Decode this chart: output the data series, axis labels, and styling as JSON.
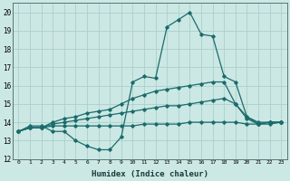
{
  "xlabel": "Humidex (Indice chaleur)",
  "xlim": [
    -0.5,
    23.5
  ],
  "ylim": [
    12,
    20.5
  ],
  "yticks": [
    12,
    13,
    14,
    15,
    16,
    17,
    18,
    19,
    20
  ],
  "xticks": [
    0,
    1,
    2,
    3,
    4,
    5,
    6,
    7,
    8,
    9,
    10,
    11,
    12,
    13,
    14,
    15,
    16,
    17,
    18,
    19,
    20,
    21,
    22,
    23
  ],
  "bg_color": "#cce8e4",
  "grid_color": "#aacfcc",
  "line_color": "#1a6b6b",
  "series": [
    [
      13.5,
      13.8,
      13.8,
      13.5,
      13.5,
      13.0,
      12.7,
      12.5,
      12.5,
      13.2,
      16.2,
      16.5,
      16.4,
      19.2,
      19.6,
      20.0,
      18.8,
      18.7,
      16.5,
      16.2,
      14.3,
      13.9,
      14.0,
      14.0
    ],
    [
      13.5,
      13.7,
      13.7,
      14.0,
      14.2,
      14.3,
      14.5,
      14.6,
      14.7,
      15.0,
      15.3,
      15.5,
      15.7,
      15.8,
      15.9,
      16.0,
      16.1,
      16.2,
      16.2,
      15.0,
      14.3,
      14.0,
      14.0,
      14.0
    ],
    [
      13.5,
      13.7,
      13.7,
      13.9,
      14.0,
      14.1,
      14.2,
      14.3,
      14.4,
      14.5,
      14.6,
      14.7,
      14.8,
      14.9,
      14.9,
      15.0,
      15.1,
      15.2,
      15.3,
      15.0,
      14.2,
      13.9,
      14.0,
      14.0
    ],
    [
      13.5,
      13.7,
      13.7,
      13.8,
      13.8,
      13.8,
      13.8,
      13.8,
      13.8,
      13.8,
      13.8,
      13.9,
      13.9,
      13.9,
      13.9,
      14.0,
      14.0,
      14.0,
      14.0,
      14.0,
      13.9,
      13.9,
      13.9,
      14.0
    ]
  ]
}
